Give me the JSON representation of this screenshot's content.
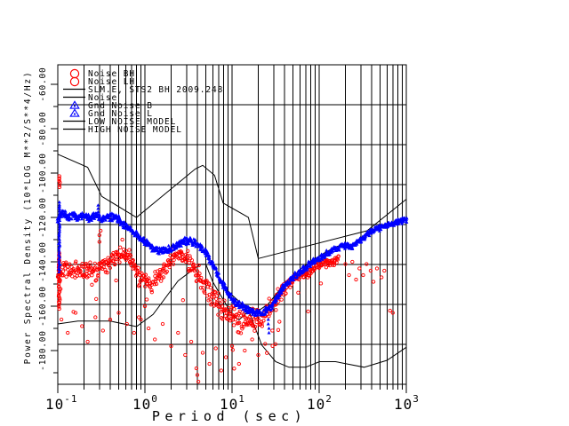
{
  "figure": {
    "background": "#ffffff",
    "colors": {
      "red": "#ff0000",
      "blue": "#0000ff",
      "line": "#000000"
    },
    "legend": {
      "position": "top-left-inside",
      "entries": [
        {
          "symbol": "circle",
          "color": "#ff0000",
          "label": "Noise BH"
        },
        {
          "symbol": "circle",
          "color": "#ff0000",
          "label": "Noise LH"
        },
        {
          "symbol": "line",
          "color": "#000000",
          "label": "SLM.E, STS2 BH  2009.248"
        },
        {
          "symbol": "line",
          "color": "#000000",
          "label": "Noise"
        },
        {
          "symbol": "triangle",
          "color": "#0000ff",
          "label": "Gnd Noise B"
        },
        {
          "symbol": "triangle",
          "color": "#0000ff",
          "label": "Gnd Noise L"
        },
        {
          "symbol": "line",
          "color": "#000000",
          "label": "LOW NOISE MODEL"
        },
        {
          "symbol": "line",
          "color": "#000000",
          "label": "HIGH NOISE MODEL"
        }
      ]
    }
  },
  "chart_data": {
    "type": "scatter",
    "title": "SLM.E, STS2 BH  2009.248",
    "xlabel": "Period (sec)",
    "ylabel": "Power Spectral Density (10*LOG M**2/S**4/Hz)",
    "x_scale": "log",
    "xlim": [
      0.1,
      1000
    ],
    "ylim": [
      -196,
      -52
    ],
    "grid": true,
    "x_tick_base": "10",
    "x_tick_exponents": [
      -1,
      0,
      1,
      2,
      3
    ],
    "y_major_ticks": [
      -60,
      -80,
      -100,
      -120,
      -140,
      -160,
      -180
    ],
    "y_tick_labels": [
      "-60.00",
      "-80.00",
      "-100.00",
      "-120.00",
      "-140.00",
      "-160.00",
      "-180.00"
    ],
    "y_minor_tick_step": 10,
    "series": [
      {
        "name": "Noise BH / Noise LH",
        "color": "#ff0000",
        "marker": "circle",
        "band": [
          [
            0.1,
            -146,
            5
          ],
          [
            0.12,
            -143,
            5
          ],
          [
            0.14,
            -145,
            5
          ],
          [
            0.17,
            -142,
            5
          ],
          [
            0.2,
            -145,
            5
          ],
          [
            0.24,
            -143,
            5
          ],
          [
            0.28,
            -145,
            5
          ],
          [
            0.33,
            -142,
            5
          ],
          [
            0.4,
            -140,
            4.5
          ],
          [
            0.48,
            -137.5,
            4
          ],
          [
            0.57,
            -136,
            4
          ],
          [
            0.68,
            -140,
            5
          ],
          [
            0.8,
            -145,
            5
          ],
          [
            0.95,
            -148,
            5
          ],
          [
            1.15,
            -150,
            5
          ],
          [
            1.4,
            -147,
            5
          ],
          [
            1.7,
            -143,
            4.5
          ],
          [
            2.1,
            -138,
            4
          ],
          [
            2.6,
            -136.5,
            4
          ],
          [
            3.2,
            -140,
            5
          ],
          [
            4.0,
            -146,
            6
          ],
          [
            5.0,
            -152,
            6
          ],
          [
            6.3,
            -157,
            6
          ],
          [
            8.0,
            -162,
            6
          ],
          [
            10,
            -165,
            6
          ],
          [
            13,
            -167,
            6
          ],
          [
            17,
            -167,
            6
          ],
          [
            21,
            -165,
            6
          ],
          [
            26,
            -162,
            5.5
          ],
          [
            32,
            -157,
            5
          ],
          [
            40,
            -152,
            4
          ],
          [
            50,
            -148,
            3
          ],
          [
            63,
            -145.5,
            2.5
          ],
          [
            75,
            -145,
            2.5
          ],
          [
            90,
            -142,
            2.5
          ],
          [
            110,
            -140.5,
            2.5
          ],
          [
            140,
            -140,
            2.5
          ],
          [
            170,
            -138.5,
            2.5
          ]
        ],
        "outliers": [
          [
            0.11,
            -166
          ],
          [
            0.13,
            -172
          ],
          [
            0.16,
            -163
          ],
          [
            0.19,
            -169
          ],
          [
            0.22,
            -176
          ],
          [
            0.27,
            -165
          ],
          [
            0.33,
            -171
          ],
          [
            0.4,
            -166
          ],
          [
            0.5,
            -163
          ],
          [
            0.62,
            -168
          ],
          [
            0.75,
            -172
          ],
          [
            0.9,
            -166
          ],
          [
            1.1,
            -170
          ],
          [
            1.3,
            -175
          ],
          [
            1.6,
            -168
          ],
          [
            2.0,
            -178
          ],
          [
            2.4,
            -172
          ],
          [
            2.9,
            -182
          ],
          [
            3.4,
            -176
          ],
          [
            3.9,
            -188
          ],
          [
            4.0,
            -191
          ],
          [
            4.1,
            -194
          ],
          [
            4.6,
            -181
          ],
          [
            5.5,
            -186
          ],
          [
            6.5,
            -179
          ],
          [
            7.5,
            -189
          ],
          [
            8.5,
            -183
          ],
          [
            10,
            -178
          ],
          [
            12,
            -186
          ],
          [
            14,
            -180
          ],
          [
            17,
            -175
          ],
          [
            20,
            -182
          ],
          [
            24,
            -177
          ],
          [
            29,
            -171
          ],
          [
            35,
            -167
          ],
          [
            0.3,
            -131
          ],
          [
            0.3,
            -128
          ],
          [
            0.31,
            -126
          ],
          [
            0.55,
            -130
          ],
          [
            1.0,
            -160
          ],
          [
            1.05,
            -157
          ],
          [
            200,
            -141
          ],
          [
            220,
            -146
          ],
          [
            240,
            -140
          ],
          [
            265,
            -148
          ],
          [
            290,
            -143
          ],
          [
            320,
            -146
          ],
          [
            350,
            -141
          ],
          [
            390,
            -144
          ],
          [
            420,
            -149
          ],
          [
            460,
            -143
          ],
          [
            520,
            -147
          ],
          [
            560,
            -144
          ],
          [
            650,
            -162
          ],
          [
            700,
            -163
          ]
        ],
        "edge_columns": [
          [
            0.1,
            -101,
            -106
          ],
          [
            0.1,
            -136,
            -161
          ]
        ]
      },
      {
        "name": "Gnd Noise B / Gnd Noise L",
        "color": "#0000ff",
        "marker": "triangle",
        "band": [
          [
            0.1,
            -121,
            2
          ],
          [
            0.115,
            -118,
            2
          ],
          [
            0.13,
            -120,
            2
          ],
          [
            0.15,
            -118.5,
            2
          ],
          [
            0.17,
            -120,
            2
          ],
          [
            0.2,
            -119,
            2
          ],
          [
            0.23,
            -120.5,
            2
          ],
          [
            0.27,
            -119,
            2
          ],
          [
            0.32,
            -120.5,
            2
          ],
          [
            0.38,
            -119.5,
            2
          ],
          [
            0.45,
            -120,
            2
          ],
          [
            0.52,
            -121.5,
            2
          ],
          [
            0.6,
            -124,
            2
          ],
          [
            0.7,
            -126,
            2
          ],
          [
            0.85,
            -129,
            2
          ],
          [
            1.0,
            -131,
            2
          ],
          [
            1.2,
            -133.5,
            2
          ],
          [
            1.5,
            -135,
            2
          ],
          [
            1.9,
            -134.5,
            2
          ],
          [
            2.4,
            -132,
            2
          ],
          [
            3.0,
            -130.5,
            2
          ],
          [
            3.6,
            -131,
            2
          ],
          [
            4.3,
            -133,
            2
          ],
          [
            5.2,
            -137,
            2
          ],
          [
            6.3,
            -143,
            2
          ],
          [
            7.5,
            -149,
            2
          ],
          [
            9.0,
            -154,
            2
          ],
          [
            11,
            -158,
            2
          ],
          [
            14,
            -161,
            2
          ],
          [
            18,
            -163,
            1.8
          ],
          [
            22,
            -163,
            1.8
          ],
          [
            27,
            -161,
            1.8
          ],
          [
            33,
            -156,
            1.8
          ],
          [
            40,
            -151,
            1.8
          ],
          [
            50,
            -147,
            1.8
          ],
          [
            63,
            -144,
            1.8
          ],
          [
            78,
            -141,
            1.8
          ],
          [
            95,
            -139,
            1.6
          ],
          [
            120,
            -136.5,
            1.6
          ],
          [
            150,
            -134.5,
            1.6
          ],
          [
            190,
            -133,
            1.6
          ],
          [
            240,
            -133,
            1.6
          ],
          [
            300,
            -130,
            1.6
          ],
          [
            380,
            -127,
            1.6
          ],
          [
            450,
            -125,
            1.6
          ],
          [
            550,
            -124,
            1.6
          ],
          [
            700,
            -122.5,
            1.6
          ],
          [
            850,
            -121.5,
            1.6
          ],
          [
            1000,
            -121,
            1.6
          ]
        ],
        "outliers": [
          [
            0.29,
            -114.5
          ],
          [
            0.29,
            -116
          ],
          [
            0.29,
            -117.5
          ],
          [
            26,
            -166
          ],
          [
            26,
            -168
          ],
          [
            26.5,
            -170
          ],
          [
            26.5,
            -172
          ]
        ],
        "edge_columns": [
          [
            0.1,
            -113,
            -145
          ]
        ]
      },
      {
        "name": "SLM.E, STS2 BH  2009.248",
        "color": "#000000",
        "type": "line",
        "points": [
          [
            8,
            -151
          ],
          [
            10,
            -155
          ],
          [
            13,
            -159
          ],
          [
            17,
            -161
          ],
          [
            21,
            -161.5
          ],
          [
            26,
            -159
          ],
          [
            33,
            -154
          ],
          [
            40,
            -150
          ],
          [
            50,
            -146.5
          ],
          [
            63,
            -143
          ],
          [
            78,
            -140
          ],
          [
            95,
            -138
          ],
          [
            120,
            -135.5
          ],
          [
            150,
            -133.5
          ],
          [
            190,
            -132
          ],
          [
            230,
            -133
          ],
          [
            280,
            -130
          ]
        ]
      },
      {
        "name": "LOW NOISE MODEL",
        "color": "#000000",
        "type": "line",
        "points": [
          [
            0.1,
            -168.0
          ],
          [
            0.17,
            -166.7
          ],
          [
            0.4,
            -166.7
          ],
          [
            0.8,
            -169.2
          ],
          [
            1.24,
            -163.7
          ],
          [
            2.4,
            -148.6
          ],
          [
            4.3,
            -141.1
          ],
          [
            5.0,
            -141.1
          ],
          [
            6.0,
            -149.0
          ],
          [
            10.0,
            -163.8
          ],
          [
            12.0,
            -166.2
          ],
          [
            15.6,
            -162.1
          ],
          [
            21.9,
            -177.5
          ],
          [
            31.6,
            -185.0
          ],
          [
            45.0,
            -187.5
          ],
          [
            70.0,
            -187.5
          ],
          [
            101.0,
            -185.0
          ],
          [
            154.0,
            -185.0
          ],
          [
            328.0,
            -187.5
          ],
          [
            600.0,
            -184.4
          ],
          [
            1000.0,
            -178.5
          ]
        ]
      },
      {
        "name": "HIGH NOISE MODEL",
        "color": "#000000",
        "type": "line",
        "points": [
          [
            0.1,
            -91.5
          ],
          [
            0.22,
            -97.4
          ],
          [
            0.32,
            -110.5
          ],
          [
            0.8,
            -120.0
          ],
          [
            3.8,
            -98.1
          ],
          [
            4.6,
            -96.5
          ],
          [
            6.3,
            -101.0
          ],
          [
            7.9,
            -113.5
          ],
          [
            15.4,
            -120.0
          ],
          [
            20.0,
            -138.5
          ],
          [
            354.8,
            -126.0
          ],
          [
            1000.0,
            -111.8
          ]
        ]
      }
    ]
  }
}
